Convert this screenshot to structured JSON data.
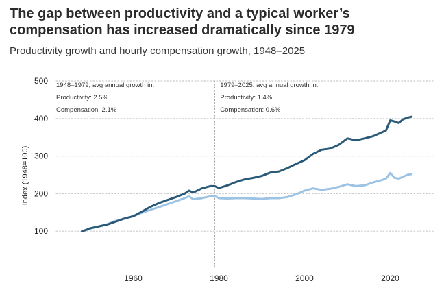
{
  "chart_data": {
    "type": "line",
    "title": "The gap between productivity and a typical worker’s compensation has increased dramatically since 1979",
    "subtitle": "Productivity growth and hourly compensation growth, 1948–2025",
    "xlabel": "",
    "ylabel": "Index (1948=100)",
    "xlim": [
      1942,
      2030
    ],
    "ylim": [
      0,
      500
    ],
    "x_ticks": [
      "1960",
      "1980",
      "2000",
      "2020"
    ],
    "y_ticks": [
      "100",
      "200",
      "300",
      "400",
      "500"
    ],
    "divider_year": 1979,
    "series": [
      {
        "name": "Productivity",
        "color": "#2a5a78",
        "x": [
          1948,
          1950,
          1952,
          1954,
          1956,
          1958,
          1960,
          1962,
          1964,
          1966,
          1968,
          1970,
          1972,
          1973,
          1974,
          1976,
          1978,
          1979,
          1980,
          1982,
          1984,
          1986,
          1988,
          1990,
          1992,
          1994,
          1996,
          1998,
          2000,
          2002,
          2004,
          2006,
          2008,
          2010,
          2012,
          2014,
          2016,
          2018,
          2019,
          2020,
          2021,
          2022,
          2023,
          2024,
          2025
        ],
        "values": [
          99,
          108,
          113,
          118,
          126,
          134,
          140,
          152,
          165,
          175,
          183,
          191,
          200,
          208,
          203,
          214,
          220,
          220,
          215,
          222,
          231,
          238,
          242,
          247,
          256,
          259,
          268,
          279,
          289,
          306,
          317,
          320,
          330,
          347,
          342,
          347,
          353,
          363,
          368,
          395,
          392,
          388,
          398,
          402,
          405
        ]
      },
      {
        "name": "Compensation",
        "color": "#9cc3e3",
        "x": [
          1948,
          1950,
          1952,
          1954,
          1956,
          1958,
          1960,
          1962,
          1964,
          1966,
          1968,
          1970,
          1972,
          1973,
          1974,
          1976,
          1978,
          1979,
          1980,
          1982,
          1984,
          1986,
          1988,
          1990,
          1992,
          1994,
          1996,
          1998,
          2000,
          2002,
          2004,
          2006,
          2008,
          2010,
          2012,
          2014,
          2016,
          2018,
          2019,
          2020,
          2021,
          2022,
          2023,
          2024,
          2025
        ],
        "values": [
          100,
          107,
          113,
          119,
          128,
          134,
          140,
          149,
          157,
          164,
          172,
          180,
          188,
          193,
          185,
          188,
          193,
          194,
          188,
          187,
          188,
          188,
          187,
          186,
          188,
          188,
          191,
          198,
          208,
          214,
          210,
          213,
          218,
          225,
          220,
          222,
          230,
          236,
          240,
          255,
          242,
          240,
          245,
          250,
          252
        ]
      }
    ],
    "annotations": [
      {
        "id": "left",
        "lines": [
          "1948–1979, avg annual growth in:",
          "Productivity: 2.5%",
          "Compensation: 2.1%"
        ]
      },
      {
        "id": "right",
        "lines": [
          "1979–2025, avg annual growth in:",
          "Productivity: 1.4%",
          "Compensation: 0.6%"
        ]
      }
    ]
  }
}
